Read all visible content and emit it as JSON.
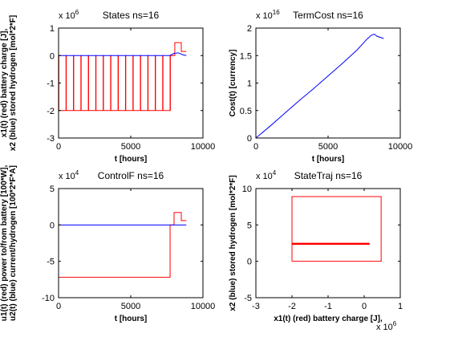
{
  "window": {
    "background": "#ffffff"
  },
  "chart_data": [
    {
      "id": "states",
      "type": "line",
      "title": "States ns=16",
      "xlabel": "t [hours]",
      "ylabel_lines": [
        "x1(t) (red) battery charge [J],",
        "x2 (blue) stored hydrogen [mol*2*F]"
      ],
      "y_exponent": {
        "base": "x 10",
        "power": "6"
      },
      "xlim": [
        0,
        10000
      ],
      "ylim": [
        -3,
        1
      ],
      "x_ticks": [
        "0",
        "5000",
        "10000"
      ],
      "y_ticks": [
        "-3",
        "-2",
        "-1",
        "0",
        "1"
      ],
      "series": [
        {
          "color": "#ff0000",
          "pattern": "spikes",
          "base": -2,
          "top": 0,
          "spikes_x": [
            0,
            515,
            1030,
            1545,
            2060,
            2575,
            3090,
            3605,
            4120,
            4635,
            5150,
            5665,
            6180,
            6695,
            7210,
            7725
          ],
          "after": [
            [
              7725,
              -2
            ],
            [
              7725,
              0
            ],
            [
              8050,
              0
            ],
            [
              8050,
              0.47
            ],
            [
              8500,
              0.47
            ],
            [
              8500,
              0.15
            ],
            [
              8850,
              0.15
            ]
          ]
        },
        {
          "color": "#0000ff",
          "pattern": "flat_then",
          "points": [
            [
              0,
              0
            ],
            [
              7700,
              0
            ],
            [
              8000,
              0.08
            ],
            [
              8300,
              0.1
            ],
            [
              8600,
              0.03
            ],
            [
              8850,
              0.0
            ]
          ]
        }
      ]
    },
    {
      "id": "termcost",
      "type": "line",
      "title": "TermCost ns=16",
      "xlabel": "t [hours]",
      "ylabel_lines": [
        "Cost(t) [currency]"
      ],
      "y_exponent": {
        "base": "x 10",
        "power": "16"
      },
      "xlim": [
        0,
        10000
      ],
      "ylim": [
        0,
        2
      ],
      "x_ticks": [
        "0",
        "5000",
        "10000"
      ],
      "y_ticks": [
        "0",
        "0.5",
        "1",
        "1.5",
        "2"
      ],
      "series": [
        {
          "color": "#0000ff",
          "points": [
            [
              0,
              0
            ],
            [
              1000,
              0.22
            ],
            [
              2000,
              0.45
            ],
            [
              3000,
              0.68
            ],
            [
              4000,
              0.9
            ],
            [
              5000,
              1.13
            ],
            [
              6000,
              1.36
            ],
            [
              7000,
              1.6
            ],
            [
              7700,
              1.8
            ],
            [
              8000,
              1.87
            ],
            [
              8200,
              1.89
            ],
            [
              8400,
              1.85
            ],
            [
              8850,
              1.81
            ]
          ]
        }
      ]
    },
    {
      "id": "control",
      "type": "line",
      "title": "ControlF ns=16",
      "xlabel": "t [hours]",
      "ylabel_lines": [
        "u1(t) (red) power to/from battery [100*W],",
        "u2(t) (blue) current/hydrogen [100*2*F*A]"
      ],
      "y_exponent": {
        "base": "x 10",
        "power": "4"
      },
      "xlim": [
        0,
        10000
      ],
      "ylim": [
        -10,
        5
      ],
      "x_ticks": [
        "0",
        "5000",
        "10000"
      ],
      "y_ticks": [
        "-10",
        "-5",
        "0",
        "5"
      ],
      "series": [
        {
          "color": "#ff0000",
          "points": [
            [
              0,
              -7.2
            ],
            [
              7725,
              -7.2
            ],
            [
              7725,
              0
            ],
            [
              8000,
              0
            ],
            [
              8000,
              1.7
            ],
            [
              8500,
              1.7
            ],
            [
              8500,
              0.6
            ],
            [
              8850,
              0.6
            ]
          ]
        },
        {
          "color": "#0000ff",
          "points": [
            [
              0,
              0
            ],
            [
              8850,
              0
            ]
          ]
        }
      ]
    },
    {
      "id": "statetraj",
      "type": "line",
      "title": "StateTraj ns=16",
      "xlabel": "x1(t) (red) battery charge [J],",
      "ylabel_lines": [
        "x2 (blue) stored hydrogen [mol*2*F]"
      ],
      "y_exponent": {
        "base": "x 10",
        "power": "4"
      },
      "x_exponent": {
        "base": "x 10",
        "power": "6"
      },
      "xlim": [
        -3,
        1
      ],
      "ylim": [
        -5,
        10
      ],
      "x_ticks": [
        "-3",
        "-2",
        "-1",
        "0",
        "1"
      ],
      "y_ticks": [
        "-5",
        "0",
        "5",
        "10"
      ],
      "series": [
        {
          "color": "#ff0000",
          "points": [
            [
              -2,
              0
            ],
            [
              -2,
              8.9
            ],
            [
              0.47,
              8.9
            ],
            [
              0.47,
              0
            ],
            [
              -2,
              0
            ]
          ]
        },
        {
          "color": "#ff0000",
          "thick": true,
          "points": [
            [
              -2,
              2.4
            ],
            [
              0.15,
              2.4
            ]
          ]
        }
      ]
    }
  ]
}
